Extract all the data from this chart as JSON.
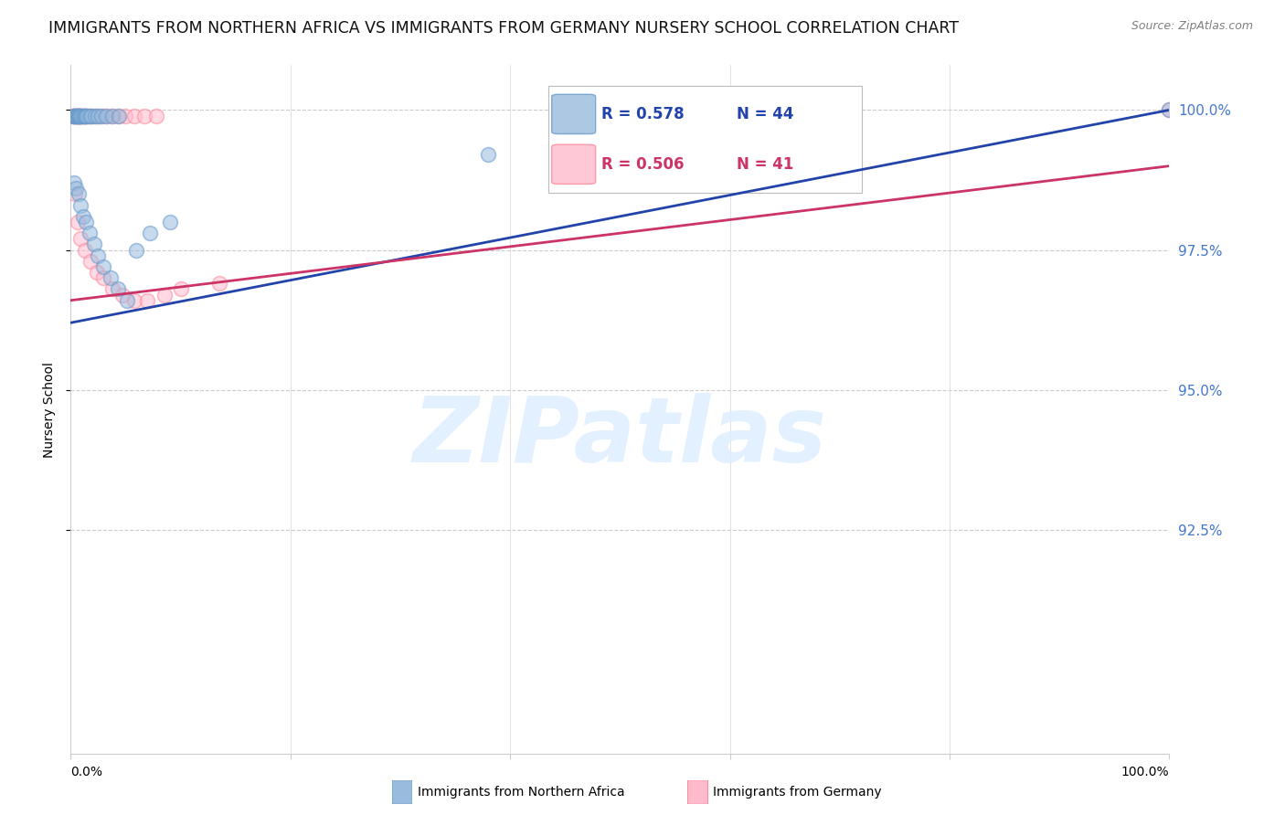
{
  "title": "IMMIGRANTS FROM NORTHERN AFRICA VS IMMIGRANTS FROM GERMANY NURSERY SCHOOL CORRELATION CHART",
  "source": "Source: ZipAtlas.com",
  "ylabel": "Nursery School",
  "ytick_values": [
    0.925,
    0.95,
    0.975,
    1.0
  ],
  "ytick_labels": [
    "92.5%",
    "95.0%",
    "97.5%",
    "100.0%"
  ],
  "xlim": [
    0.0,
    1.0
  ],
  "ylim": [
    0.885,
    1.008
  ],
  "legend_label_blue": "Immigrants from Northern Africa",
  "legend_label_pink": "Immigrants from Germany",
  "R_blue": 0.578,
  "N_blue": 44,
  "R_pink": 0.506,
  "N_pink": 41,
  "blue_fill_color": "#99BBDD",
  "blue_edge_color": "#6699CC",
  "pink_fill_color": "#FFBBCC",
  "pink_edge_color": "#FF8899",
  "line_blue_color": "#2244AA",
  "line_pink_color": "#CC3366",
  "watermark_text": "ZIPatlas",
  "watermark_color": "#DDEEFF",
  "background_color": "#ffffff",
  "grid_color": "#cccccc",
  "title_fontsize": 12.5,
  "source_fontsize": 9,
  "tick_label_color": "#4477CC",
  "scatter_size": 130,
  "scatter_alpha": 0.55,
  "scatter_lw": 1.2,
  "line_lw": 2.0,
  "blue_x": [
    0.002,
    0.003,
    0.004,
    0.005,
    0.005,
    0.006,
    0.006,
    0.007,
    0.007,
    0.008,
    0.008,
    0.009,
    0.01,
    0.011,
    0.012,
    0.013,
    0.014,
    0.015,
    0.017,
    0.019,
    0.022,
    0.025,
    0.028,
    0.032,
    0.038,
    0.044,
    0.003,
    0.005,
    0.007,
    0.009,
    0.011,
    0.014,
    0.017,
    0.021,
    0.025,
    0.03,
    0.036,
    0.043,
    0.051,
    0.06,
    0.072,
    0.09,
    0.38,
    1.0
  ],
  "blue_y": [
    0.999,
    0.999,
    0.999,
    0.999,
    0.999,
    0.999,
    0.999,
    0.999,
    0.999,
    0.999,
    0.999,
    0.999,
    0.999,
    0.999,
    0.999,
    0.999,
    0.999,
    0.999,
    0.999,
    0.999,
    0.999,
    0.999,
    0.999,
    0.999,
    0.999,
    0.999,
    0.987,
    0.986,
    0.985,
    0.983,
    0.981,
    0.98,
    0.978,
    0.976,
    0.974,
    0.972,
    0.97,
    0.968,
    0.966,
    0.975,
    0.978,
    0.98,
    0.992,
    1.0
  ],
  "pink_x": [
    0.002,
    0.003,
    0.004,
    0.005,
    0.005,
    0.006,
    0.007,
    0.008,
    0.009,
    0.01,
    0.011,
    0.012,
    0.013,
    0.015,
    0.017,
    0.019,
    0.022,
    0.025,
    0.028,
    0.032,
    0.037,
    0.043,
    0.05,
    0.058,
    0.067,
    0.078,
    0.004,
    0.006,
    0.009,
    0.013,
    0.018,
    0.024,
    0.03,
    0.038,
    0.047,
    0.058,
    0.07,
    0.085,
    0.1,
    0.135,
    1.0
  ],
  "pink_y": [
    0.999,
    0.999,
    0.999,
    0.999,
    0.999,
    0.999,
    0.999,
    0.999,
    0.999,
    0.999,
    0.999,
    0.999,
    0.999,
    0.999,
    0.999,
    0.999,
    0.999,
    0.999,
    0.999,
    0.999,
    0.999,
    0.999,
    0.999,
    0.999,
    0.999,
    0.999,
    0.985,
    0.98,
    0.977,
    0.975,
    0.973,
    0.971,
    0.97,
    0.968,
    0.967,
    0.966,
    0.966,
    0.967,
    0.968,
    0.969,
    1.0
  ],
  "blue_trend": [
    0.962,
    1.0
  ],
  "pink_trend": [
    0.966,
    0.99
  ]
}
